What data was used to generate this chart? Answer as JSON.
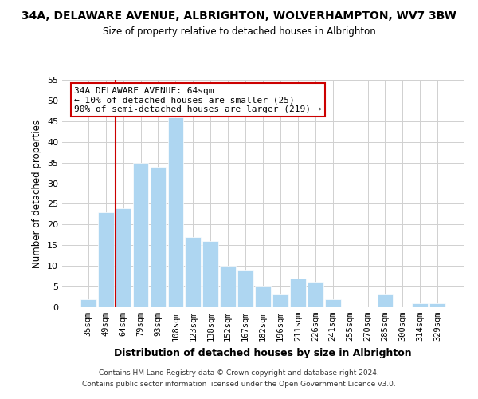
{
  "title": "34A, DELAWARE AVENUE, ALBRIGHTON, WOLVERHAMPTON, WV7 3BW",
  "subtitle": "Size of property relative to detached houses in Albrighton",
  "xlabel": "Distribution of detached houses by size in Albrighton",
  "ylabel": "Number of detached properties",
  "bar_labels": [
    "35sqm",
    "49sqm",
    "64sqm",
    "79sqm",
    "93sqm",
    "108sqm",
    "123sqm",
    "138sqm",
    "152sqm",
    "167sqm",
    "182sqm",
    "196sqm",
    "211sqm",
    "226sqm",
    "241sqm",
    "255sqm",
    "270sqm",
    "285sqm",
    "300sqm",
    "314sqm",
    "329sqm"
  ],
  "bar_heights": [
    2,
    23,
    24,
    35,
    34,
    46,
    17,
    16,
    10,
    9,
    5,
    3,
    7,
    6,
    2,
    0,
    0,
    3,
    0,
    1,
    1
  ],
  "bar_color": "#aed6f1",
  "highlight_bar_index": 2,
  "highlight_color": "#cc0000",
  "ylim": [
    0,
    55
  ],
  "yticks": [
    0,
    5,
    10,
    15,
    20,
    25,
    30,
    35,
    40,
    45,
    50,
    55
  ],
  "annotation_title": "34A DELAWARE AVENUE: 64sqm",
  "annotation_line1": "← 10% of detached houses are smaller (25)",
  "annotation_line2": "90% of semi-detached houses are larger (219) →",
  "footer_line1": "Contains HM Land Registry data © Crown copyright and database right 2024.",
  "footer_line2": "Contains public sector information licensed under the Open Government Licence v3.0.",
  "background_color": "#ffffff",
  "grid_color": "#d0d0d0"
}
